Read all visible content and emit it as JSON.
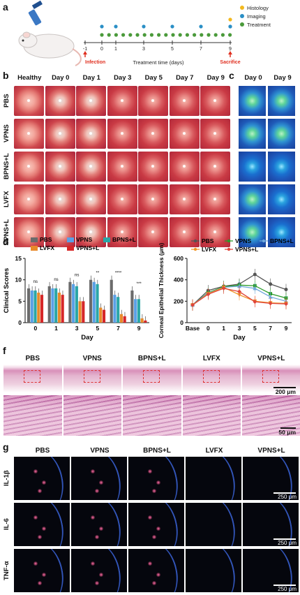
{
  "panel_labels": [
    "a",
    "b",
    "c",
    "d",
    "e",
    "f",
    "g"
  ],
  "timeline": {
    "days": [
      "-1",
      "0",
      "1",
      "3",
      "5",
      "7",
      "9"
    ],
    "infection_label": "Infection",
    "sacrifice_label": "Sacrifice",
    "axis_label": "Treatment time (days)",
    "legend": [
      {
        "label": "Histology",
        "color": "#f2b81e"
      },
      {
        "label": "Imaging",
        "color": "#2a8fc6"
      },
      {
        "label": "Treatment",
        "color": "#4a9a3a"
      }
    ]
  },
  "photo_grid": {
    "columns": [
      "Healthy",
      "Day 0",
      "Day 1",
      "Day 3",
      "Day 5",
      "Day 7",
      "Day 9"
    ],
    "rows": [
      "PBS",
      "VPNS",
      "BPNS+L",
      "LVFX",
      "VPNS+L"
    ]
  },
  "fluor_grid": {
    "columns": [
      "Day 0",
      "Day 9"
    ]
  },
  "chart_data": [
    {
      "type": "bar",
      "ylabel": "Clinical Scores",
      "xlabel": "Day",
      "categories": [
        "0",
        "1",
        "3",
        "5",
        "7",
        "9"
      ],
      "ylim": [
        0,
        15
      ],
      "yticks": [
        0,
        5,
        10,
        15
      ],
      "legend_placement": "top",
      "series": [
        {
          "name": "PBS",
          "color": "#6b6b6b",
          "values": [
            8.0,
            8.5,
            9.5,
            10.0,
            10.0,
            7.5
          ]
        },
        {
          "name": "VPNS",
          "color": "#5aa0e6",
          "values": [
            7.5,
            8.0,
            9.0,
            9.5,
            6.5,
            5.5
          ]
        },
        {
          "name": "BPNS+L",
          "color": "#2aa6a6",
          "values": [
            7.5,
            8.0,
            8.5,
            9.0,
            6.0,
            5.5
          ]
        },
        {
          "name": "LVFX",
          "color": "#e88a2a",
          "values": [
            7.0,
            7.0,
            5.0,
            3.5,
            2.0,
            1.0
          ]
        },
        {
          "name": "VPNS+L",
          "color": "#d62728",
          "values": [
            6.5,
            6.5,
            5.0,
            3.0,
            1.5,
            0.5
          ]
        }
      ],
      "annotations": [
        "ns",
        "ns",
        "ns",
        "**",
        "****",
        "***"
      ]
    },
    {
      "type": "line",
      "ylabel": "Corneal Epithelial Thickness (μm)",
      "xlabel": "Day",
      "categories": [
        "Base",
        "0",
        "1",
        "3",
        "5",
        "7",
        "9"
      ],
      "ylim": [
        0,
        600
      ],
      "yticks": [
        0,
        200,
        400,
        600
      ],
      "legend_placement": "top",
      "series": [
        {
          "name": "PBS",
          "color": "#555555",
          "marker": "circle",
          "values": [
            165,
            300,
            340,
            360,
            450,
            360,
            310
          ]
        },
        {
          "name": "VPNS",
          "color": "#2a9a2a",
          "marker": "square",
          "values": [
            165,
            280,
            335,
            350,
            345,
            270,
            230
          ]
        },
        {
          "name": "BPNS+L",
          "color": "#6fa8dc",
          "marker": "triangle",
          "values": [
            165,
            275,
            330,
            340,
            320,
            240,
            200
          ]
        },
        {
          "name": "LVFX",
          "color": "#f0962a",
          "marker": "triangle-down",
          "values": [
            165,
            270,
            330,
            260,
            200,
            185,
            180
          ]
        },
        {
          "name": "VPNS+L",
          "color": "#e0453a",
          "marker": "diamond",
          "values": [
            165,
            265,
            320,
            290,
            195,
            180,
            175
          ]
        }
      ]
    }
  ],
  "histology": {
    "columns": [
      "PBS",
      "VPNS",
      "BPNS+L",
      "LVFX",
      "VPNS+L"
    ],
    "scale_top": "200 μm",
    "scale_bottom": "50 μm"
  },
  "immuno": {
    "columns": [
      "PBS",
      "VPNS",
      "BPNS+L",
      "LVFX",
      "VPNS+L"
    ],
    "rows": [
      "IL-1β",
      "IL-6",
      "TNF-α"
    ],
    "scale": "250 μm"
  }
}
